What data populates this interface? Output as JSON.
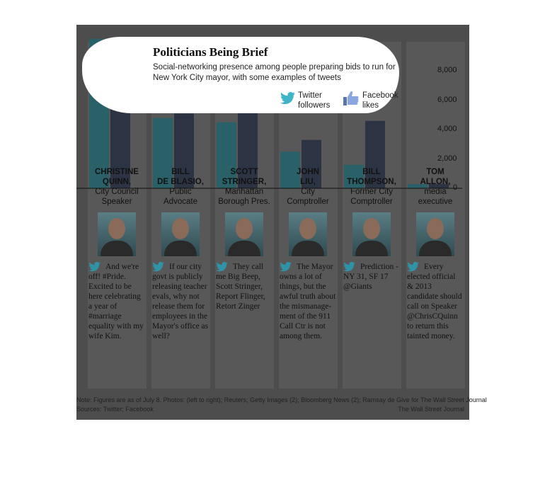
{
  "chart_data": {
    "type": "bar",
    "title": "Politicians Being Brief",
    "subtitle": "Social-networking presence among people preparing bids to run for New York City mayor, with some examples of tweets",
    "categories": [
      "CHRISTINE QUINN",
      "BILL DE BLASIO",
      "SCOTT STRINGER",
      "JOHN LIU",
      "BILL THOMPSON",
      "TOM ALLON"
    ],
    "series": [
      {
        "name": "Twitter followers",
        "color": "#2a6068",
        "values": [
          10200,
          4800,
          4500,
          2500,
          1600,
          280
        ]
      },
      {
        "name": "Facebook likes",
        "color": "#2c3444",
        "values": [
          5600,
          5100,
          6000,
          3300,
          4600,
          300
        ]
      }
    ],
    "ylim": [
      0,
      10000
    ],
    "yticks": [
      "8,000",
      "6,000",
      "4,000",
      "2,000",
      "0"
    ],
    "ytick_values": [
      8000,
      6000,
      4000,
      2000,
      0
    ]
  },
  "people": [
    {
      "name1": "CHRISTINE",
      "name2": "QUINN,",
      "role1": "City Council",
      "role2": "Speaker",
      "tweet": "And we're off! #Pride. Excited to be here celebrating a year of #marriage equality with my wife Kim."
    },
    {
      "name1": "BILL",
      "name2": "DE BLASIO,",
      "role1": "Public",
      "role2": "Advocate",
      "tweet": "If our city govt is publicly releasing teacher evals, why not release them for employees in the Mayor's office as well?"
    },
    {
      "name1": "SCOTT",
      "name2": "STRINGER,",
      "role1": "Manhattan",
      "role2": "Borough Pres.",
      "tweet": "They call me Big Beep, Scott Stringer, Report Flinger, Retort Zinger"
    },
    {
      "name1": "JOHN",
      "name2": "LIU,",
      "role1": "City",
      "role2": "Comptroller",
      "tweet": "The Mayor owns a lot of things, but the awful truth about the mismanage-ment of the 911 Call Ctr is not among them."
    },
    {
      "name1": "BILL",
      "name2": "THOMPSON,",
      "role1": "Former City",
      "role2": "Comptroller",
      "tweet": "Prediction - NY 31, SF 17 @Giants"
    },
    {
      "name1": "TOM",
      "name2": "ALLON,",
      "role1": "media",
      "role2": "executive",
      "tweet": "Every elected official & 2013 candidate should call on Speaker @ChrisCQuinn to return this tainted money."
    }
  ],
  "legend": {
    "twitter_line1": "Twitter",
    "twitter_line2": "followers",
    "facebook_line1": "Facebook",
    "facebook_line2": "likes"
  },
  "footer": {
    "note": "Note: Figures are as of July 8.   Photos: (left to right); Reuters; Getty Images (2); Bloomberg News (2); Ramsay de Give for The Wall Street Journal",
    "sources": "Sources: Twitter; Facebook",
    "credit": "The Wall Street Journal"
  },
  "colors": {
    "twitter": "#2a6068",
    "facebook": "#2c3444",
    "panel": "#4d4d4d",
    "column": "#585858",
    "highlight_twitter": "#6ee8ee",
    "highlight_facebook": "#7fa8f0"
  }
}
